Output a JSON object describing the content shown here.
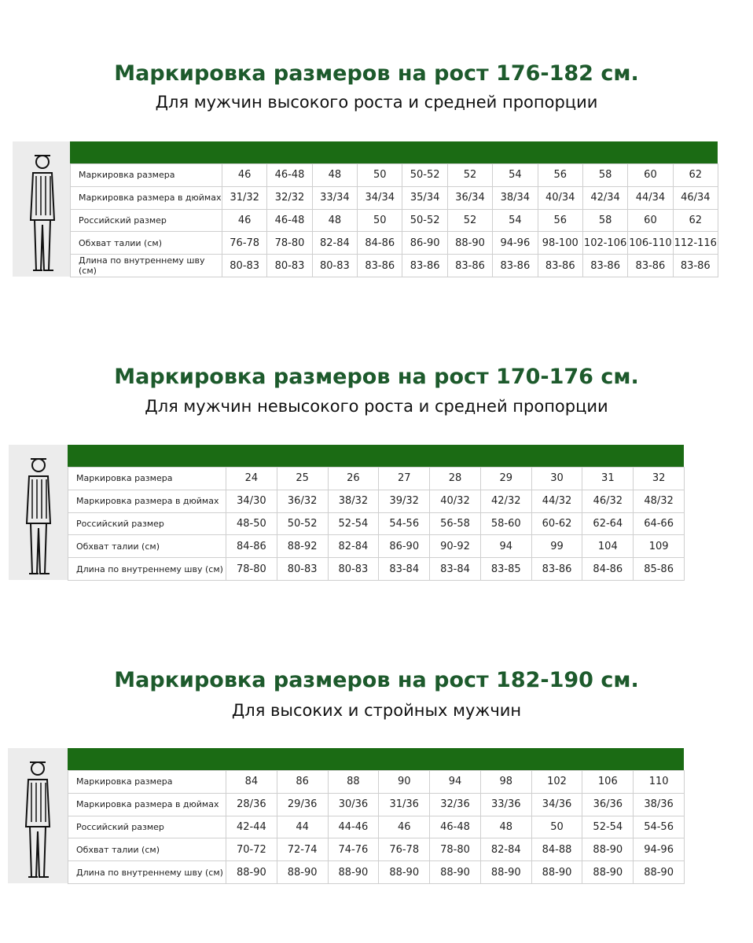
{
  "sections": [
    {
      "title": "Маркировка размеров на рост 176-182 см.",
      "subtitle": "Для мужчин высокого роста и средней пропорции",
      "rows": [
        {
          "label": "Маркировка размера",
          "cells": [
            "46",
            "46-48",
            "48",
            "50",
            "50-52",
            "52",
            "54",
            "56",
            "58",
            "60",
            "62"
          ]
        },
        {
          "label": "Маркировка размера в дюймах",
          "cells": [
            "31/32",
            "32/32",
            "33/34",
            "34/34",
            "35/34",
            "36/34",
            "38/34",
            "40/34",
            "42/34",
            "44/34",
            "46/34"
          ]
        },
        {
          "label": "Российский размер",
          "cells": [
            "46",
            "46-48",
            "48",
            "50",
            "50-52",
            "52",
            "54",
            "56",
            "58",
            "60",
            "62"
          ]
        },
        {
          "label": "Обхват талии (см)",
          "cells": [
            "76-78",
            "78-80",
            "82-84",
            "84-86",
            "86-90",
            "88-90",
            "94-96",
            "98-100",
            "102-106",
            "106-110",
            "112-116"
          ]
        },
        {
          "label": "Длина по внутреннему шву (см)",
          "cells": [
            "80-83",
            "80-83",
            "80-83",
            "83-86",
            "83-86",
            "83-86",
            "83-86",
            "83-86",
            "83-86",
            "83-86",
            "83-86"
          ]
        }
      ]
    },
    {
      "title": "Маркировка размеров на рост 170-176 см.",
      "subtitle": "Для мужчин невысокого роста и средней пропорции",
      "rows": [
        {
          "label": "Маркировка размера",
          "cells": [
            "24",
            "25",
            "26",
            "27",
            "28",
            "29",
            "30",
            "31",
            "32"
          ]
        },
        {
          "label": "Маркировка размера в дюймах",
          "cells": [
            "34/30",
            "36/32",
            "38/32",
            "39/32",
            "40/32",
            "42/32",
            "44/32",
            "46/32",
            "48/32"
          ]
        },
        {
          "label": "Российский размер",
          "cells": [
            "48-50",
            "50-52",
            "52-54",
            "54-56",
            "56-58",
            "58-60",
            "60-62",
            "62-64",
            "64-66"
          ]
        },
        {
          "label": "Обхват талии (см)",
          "cells": [
            "84-86",
            "88-92",
            "82-84",
            "86-90",
            "90-92",
            "94",
            "99",
            "104",
            "109"
          ]
        },
        {
          "label": "Длина по внутреннему шву (см)",
          "cells": [
            "78-80",
            "80-83",
            "80-83",
            "83-84",
            "83-84",
            "83-85",
            "83-86",
            "84-86",
            "85-86"
          ]
        }
      ]
    },
    {
      "title": "Маркировка размеров на рост 182-190 см.",
      "subtitle": "Для высоких и стройных мужчин",
      "rows": [
        {
          "label": "Маркировка размера",
          "cells": [
            "84",
            "86",
            "88",
            "90",
            "94",
            "98",
            "102",
            "106",
            "110"
          ]
        },
        {
          "label": "Маркировка размера в дюймах",
          "cells": [
            "28/36",
            "29/36",
            "30/36",
            "31/36",
            "32/36",
            "33/36",
            "34/36",
            "36/36",
            "38/36"
          ]
        },
        {
          "label": "Российский размер",
          "cells": [
            "42-44",
            "44",
            "44-46",
            "46",
            "46-48",
            "48",
            "50",
            "52-54",
            "54-56"
          ]
        },
        {
          "label": "Обхват талии (см)",
          "cells": [
            "70-72",
            "72-74",
            "74-76",
            "76-78",
            "78-80",
            "82-84",
            "84-88",
            "88-90",
            "94-96"
          ]
        },
        {
          "label": "Длина по внутреннему шву (см)",
          "cells": [
            "88-90",
            "88-90",
            "88-90",
            "88-90",
            "88-90",
            "88-90",
            "88-90",
            "88-90",
            "88-90"
          ]
        }
      ]
    }
  ]
}
